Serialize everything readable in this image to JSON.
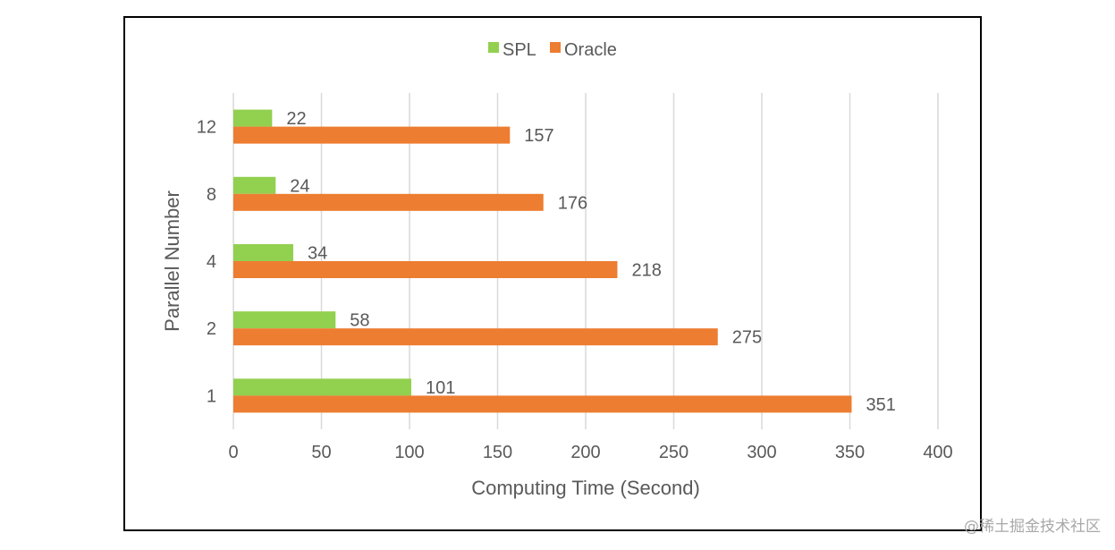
{
  "chart_data": {
    "type": "bar",
    "orientation": "horizontal",
    "title": "",
    "categories": [
      "1",
      "2",
      "4",
      "8",
      "12"
    ],
    "series": [
      {
        "name": "SPL",
        "values": [
          101,
          58,
          34,
          24,
          22
        ],
        "color": "#92d050"
      },
      {
        "name": "Oracle",
        "values": [
          351,
          275,
          218,
          176,
          157
        ],
        "color": "#ed7d31"
      }
    ],
    "xlabel": "Computing Time (Second)",
    "ylabel": "Parallel Number",
    "xlim": [
      0,
      400
    ],
    "xticks": [
      "0",
      "50",
      "100",
      "150",
      "200",
      "250",
      "300",
      "350",
      "400"
    ],
    "grid": true,
    "legend_position": "top-center",
    "data_labels": true
  },
  "watermark": "@稀土掘金技术社区",
  "colors": {
    "text": "#595959",
    "grid": "#d9d9d9",
    "frame": "#000000"
  }
}
